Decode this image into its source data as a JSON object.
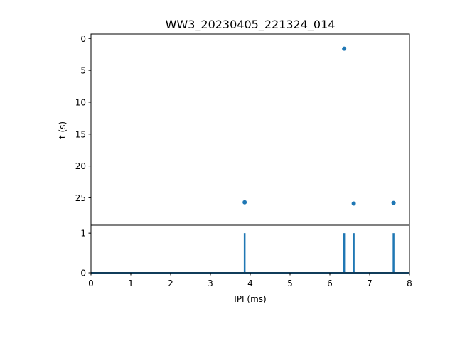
{
  "chart_data": [
    {
      "type": "scatter",
      "title": "WW3_20230405_221324_014",
      "xlabel": "",
      "ylabel": "t (s)",
      "xlim": [
        0,
        8
      ],
      "ylim": [
        29.3,
        -0.7
      ],
      "y_inverted": true,
      "yticks": [
        "0",
        "5",
        "10",
        "15",
        "20",
        "25"
      ],
      "color": "#1f77b4",
      "points": [
        {
          "x": 6.36,
          "y": 1.6
        },
        {
          "x": 3.86,
          "y": 25.7
        },
        {
          "x": 6.6,
          "y": 25.9
        },
        {
          "x": 7.6,
          "y": 25.8
        }
      ]
    },
    {
      "type": "line",
      "title": "",
      "xlabel": "IPI (ms)",
      "ylabel": "",
      "xlim": [
        0,
        8
      ],
      "ylim": [
        0,
        1.2
      ],
      "xticks": [
        "0",
        "1",
        "2",
        "3",
        "4",
        "5",
        "6",
        "7",
        "8"
      ],
      "yticks": [
        "0",
        "1"
      ],
      "color": "#1f77b4",
      "spikes": [
        {
          "x": 3.86,
          "value": 1
        },
        {
          "x": 6.36,
          "value": 1
        },
        {
          "x": 6.6,
          "value": 1
        },
        {
          "x": 7.6,
          "value": 1
        }
      ],
      "baseline": 0
    }
  ]
}
